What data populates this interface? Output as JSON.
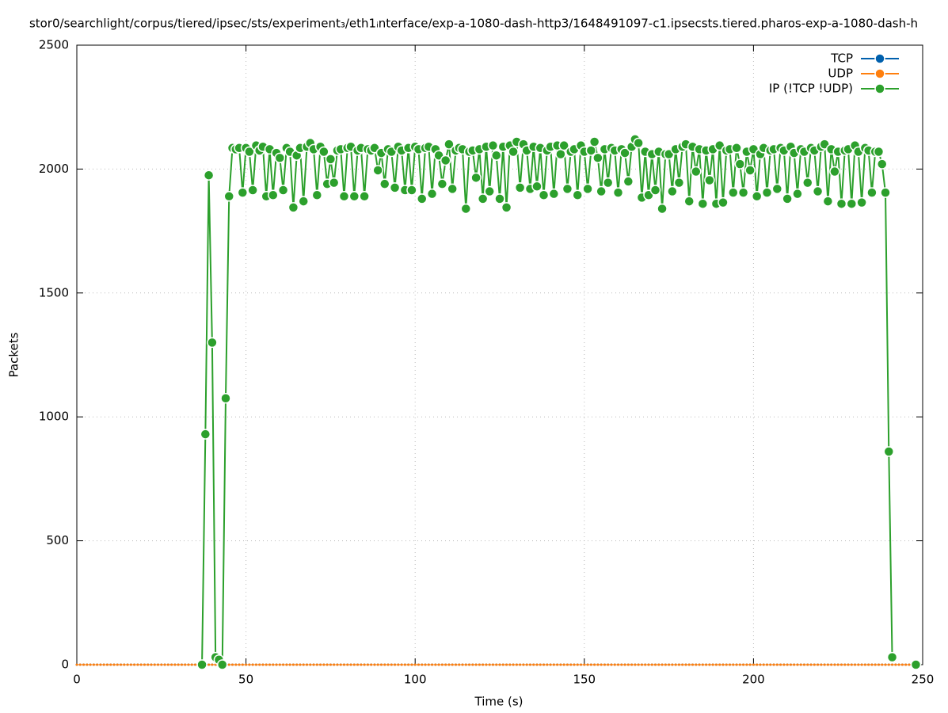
{
  "chart_data": {
    "type": "line",
    "title": "stor0/searchlight/corpus/tiered/ipsec/sts/experiment₃/eth1ᵢnterface/exp-a-1080-dash-http3/1648491097-c1.ipsecsts.tiered.pharos-exp-a-1080-dash-h",
    "x_label": "Time (s)",
    "y_label": "Packets",
    "xlim": [
      0,
      250
    ],
    "xticks": [
      0,
      50,
      100,
      150,
      200,
      250
    ],
    "ylim": [
      0,
      2500
    ],
    "yticks": [
      0,
      500,
      1000,
      1500,
      2000,
      2500
    ],
    "grid": true,
    "legend": "top-right",
    "x": [
      0,
      1,
      2,
      3,
      4,
      5,
      6,
      7,
      8,
      9,
      10,
      11,
      12,
      13,
      14,
      15,
      16,
      17,
      18,
      19,
      20,
      21,
      22,
      23,
      24,
      25,
      26,
      27,
      28,
      29,
      30,
      31,
      32,
      33,
      34,
      35,
      36,
      37,
      38,
      39,
      40,
      41,
      42,
      43,
      44,
      45,
      46,
      47,
      48,
      49,
      50,
      51,
      52,
      53,
      54,
      55,
      56,
      57,
      58,
      59,
      60,
      61,
      62,
      63,
      64,
      65,
      66,
      67,
      68,
      69,
      70,
      71,
      72,
      73,
      74,
      75,
      76,
      77,
      78,
      79,
      80,
      81,
      82,
      83,
      84,
      85,
      86,
      87,
      88,
      89,
      90,
      91,
      92,
      93,
      94,
      95,
      96,
      97,
      98,
      99,
      100,
      101,
      102,
      103,
      104,
      105,
      106,
      107,
      108,
      109,
      110,
      111,
      112,
      113,
      114,
      115,
      116,
      117,
      118,
      119,
      120,
      121,
      122,
      123,
      124,
      125,
      126,
      127,
      128,
      129,
      130,
      131,
      132,
      133,
      134,
      135,
      136,
      137,
      138,
      139,
      140,
      141,
      142,
      143,
      144,
      145,
      146,
      147,
      148,
      149,
      150,
      151,
      152,
      153,
      154,
      155,
      156,
      157,
      158,
      159,
      160,
      161,
      162,
      163,
      164,
      165,
      166,
      167,
      168,
      169,
      170,
      171,
      172,
      173,
      174,
      175,
      176,
      177,
      178,
      179,
      180,
      181,
      182,
      183,
      184,
      185,
      186,
      187,
      188,
      189,
      190,
      191,
      192,
      193,
      194,
      195,
      196,
      197,
      198,
      199,
      200,
      201,
      202,
      203,
      204,
      205,
      206,
      207,
      208,
      209,
      210,
      211,
      212,
      213,
      214,
      215,
      216,
      217,
      218,
      219,
      220,
      221,
      222,
      223,
      224,
      225,
      226,
      227,
      228,
      229,
      230,
      231,
      232,
      233,
      234,
      235,
      236,
      237,
      238,
      239,
      240,
      241,
      242,
      243,
      244,
      245,
      246,
      247,
      248
    ],
    "series": [
      {
        "name": "TCP",
        "color": "#0060ad",
        "values": [
          0,
          0,
          0,
          0,
          0,
          0,
          0,
          0,
          0,
          0,
          0,
          0,
          0,
          0,
          0,
          0,
          0,
          0,
          0,
          0,
          0,
          0,
          0,
          0,
          0,
          0,
          0,
          0,
          0,
          0,
          0,
          0,
          0,
          0,
          0,
          0,
          0,
          0,
          0,
          0,
          0,
          0,
          0,
          0,
          0,
          0,
          0,
          0,
          0,
          0,
          0,
          0,
          0,
          0,
          0,
          0,
          0,
          0,
          0,
          0,
          0,
          0,
          0,
          0,
          0,
          0,
          0,
          0,
          0,
          0,
          0,
          0,
          0,
          0,
          0,
          0,
          0,
          0,
          0,
          0,
          0,
          0,
          0,
          0,
          0,
          0,
          0,
          0,
          0,
          0,
          0,
          0,
          0,
          0,
          0,
          0,
          0,
          0,
          0,
          0,
          0,
          0,
          0,
          0,
          0,
          0,
          0,
          0,
          0,
          0,
          0,
          0,
          0,
          0,
          0,
          0,
          0,
          0,
          0,
          0,
          0,
          0,
          0,
          0,
          0,
          0,
          0,
          0,
          0,
          0,
          0,
          0,
          0,
          0,
          0,
          0,
          0,
          0,
          0,
          0,
          0,
          0,
          0,
          0,
          0,
          0,
          0,
          0,
          0,
          0,
          0,
          0,
          0,
          0,
          0,
          0,
          0,
          0,
          0,
          0,
          0,
          0,
          0,
          0,
          0,
          0,
          0,
          0,
          0,
          0,
          0,
          0,
          0,
          0,
          0,
          0,
          0,
          0,
          0,
          0,
          0,
          0,
          0,
          0,
          0,
          0,
          0,
          0,
          0,
          0,
          0,
          0,
          0,
          0,
          0,
          0,
          0,
          0,
          0,
          0,
          0,
          0,
          0,
          0,
          0,
          0,
          0,
          0,
          0,
          0,
          0,
          0,
          0,
          0,
          0,
          0,
          0,
          0,
          0,
          0,
          0,
          0,
          0,
          0,
          0,
          0,
          0,
          0,
          0,
          0,
          0,
          0,
          0,
          0,
          0,
          0,
          0,
          0,
          0,
          0,
          0,
          0,
          0,
          0,
          0,
          0,
          0,
          0,
          0
        ]
      },
      {
        "name": "UDP",
        "color": "#ff7f0e",
        "values": [
          0,
          0,
          0,
          0,
          0,
          0,
          0,
          0,
          0,
          0,
          0,
          0,
          0,
          0,
          0,
          0,
          0,
          0,
          0,
          0,
          0,
          0,
          0,
          0,
          0,
          0,
          0,
          0,
          0,
          0,
          0,
          0,
          0,
          0,
          0,
          0,
          0,
          0,
          0,
          0,
          0,
          0,
          0,
          0,
          0,
          0,
          0,
          0,
          0,
          0,
          0,
          0,
          0,
          0,
          0,
          0,
          0,
          0,
          0,
          0,
          0,
          0,
          0,
          0,
          0,
          0,
          0,
          0,
          0,
          0,
          0,
          0,
          0,
          0,
          0,
          0,
          0,
          0,
          0,
          0,
          0,
          0,
          0,
          0,
          0,
          0,
          0,
          0,
          0,
          0,
          0,
          0,
          0,
          0,
          0,
          0,
          0,
          0,
          0,
          0,
          0,
          0,
          0,
          0,
          0,
          0,
          0,
          0,
          0,
          0,
          0,
          0,
          0,
          0,
          0,
          0,
          0,
          0,
          0,
          0,
          0,
          0,
          0,
          0,
          0,
          0,
          0,
          0,
          0,
          0,
          0,
          0,
          0,
          0,
          0,
          0,
          0,
          0,
          0,
          0,
          0,
          0,
          0,
          0,
          0,
          0,
          0,
          0,
          0,
          0,
          0,
          0,
          0,
          0,
          0,
          0,
          0,
          0,
          0,
          0,
          0,
          0,
          0,
          0,
          0,
          0,
          0,
          0,
          0,
          0,
          0,
          0,
          0,
          0,
          0,
          0,
          0,
          0,
          0,
          0,
          0,
          0,
          0,
          0,
          0,
          0,
          0,
          0,
          0,
          0,
          0,
          0,
          0,
          0,
          0,
          0,
          0,
          0,
          0,
          0,
          0,
          0,
          0,
          0,
          0,
          0,
          0,
          0,
          0,
          0,
          0,
          0,
          0,
          0,
          0,
          0,
          0,
          0,
          0,
          0,
          0,
          0,
          0,
          0,
          0,
          0,
          0,
          0,
          0,
          0,
          0,
          0,
          0,
          0,
          0,
          0,
          0,
          0,
          0,
          0,
          0,
          0,
          0,
          0,
          0,
          0,
          0,
          0,
          0
        ]
      },
      {
        "name": "IP (!TCP  !UDP)",
        "color": "#2ca02c",
        "values": [
          null,
          null,
          null,
          null,
          null,
          null,
          null,
          null,
          null,
          null,
          null,
          null,
          null,
          null,
          null,
          null,
          null,
          null,
          null,
          null,
          null,
          null,
          null,
          null,
          null,
          null,
          null,
          null,
          null,
          null,
          null,
          null,
          null,
          null,
          null,
          null,
          null,
          0,
          930,
          1975,
          1300,
          30,
          20,
          0,
          1075,
          1890,
          2085,
          2080,
          2085,
          1905,
          2085,
          2070,
          1915,
          2095,
          2075,
          2090,
          1890,
          2080,
          1895,
          2065,
          2045,
          1915,
          2085,
          2070,
          1845,
          2055,
          2085,
          1870,
          2090,
          2105,
          2080,
          1895,
          2090,
          2070,
          1940,
          2040,
          1945,
          2075,
          2080,
          1890,
          2085,
          2090,
          1890,
          2075,
          2085,
          1890,
          2080,
          2075,
          2085,
          1995,
          2065,
          1940,
          2080,
          2070,
          1925,
          2090,
          2075,
          1915,
          2085,
          1915,
          2090,
          2080,
          1880,
          2085,
          2090,
          1900,
          2080,
          2055,
          1940,
          2035,
          2100,
          1920,
          2075,
          2085,
          2080,
          1840,
          2070,
          2075,
          1965,
          2080,
          1880,
          2090,
          1910,
          2095,
          2055,
          1880,
          2090,
          1845,
          2095,
          2070,
          2110,
          1925,
          2100,
          2075,
          1920,
          2090,
          1930,
          2085,
          1895,
          2075,
          2090,
          1900,
          2095,
          2060,
          2095,
          1920,
          2070,
          2080,
          1895,
          2095,
          2070,
          1920,
          2075,
          2110,
          2045,
          1910,
          2080,
          1945,
          2085,
          2075,
          1905,
          2080,
          2065,
          1950,
          2090,
          2120,
          2105,
          1885,
          2070,
          1895,
          2060,
          1915,
          2070,
          1840,
          2060,
          2060,
          1910,
          2080,
          1945,
          2090,
          2100,
          1870,
          2090,
          1990,
          2080,
          1860,
          2075,
          1955,
          2080,
          1860,
          2095,
          1865,
          2075,
          2080,
          1905,
          2085,
          2020,
          1905,
          2070,
          1995,
          2080,
          1890,
          2060,
          2085,
          1905,
          2075,
          2080,
          1920,
          2085,
          2075,
          1880,
          2090,
          2065,
          1900,
          2080,
          2070,
          1945,
          2085,
          2075,
          1910,
          2090,
          2100,
          1870,
          2080,
          1990,
          2070,
          1860,
          2075,
          2080,
          1860,
          2095,
          2070,
          1865,
          2085,
          2075,
          1905,
          2070,
          2070,
          2020,
          1905,
          860,
          30,
          null,
          null,
          null,
          null,
          null,
          null,
          0
        ]
      }
    ]
  }
}
